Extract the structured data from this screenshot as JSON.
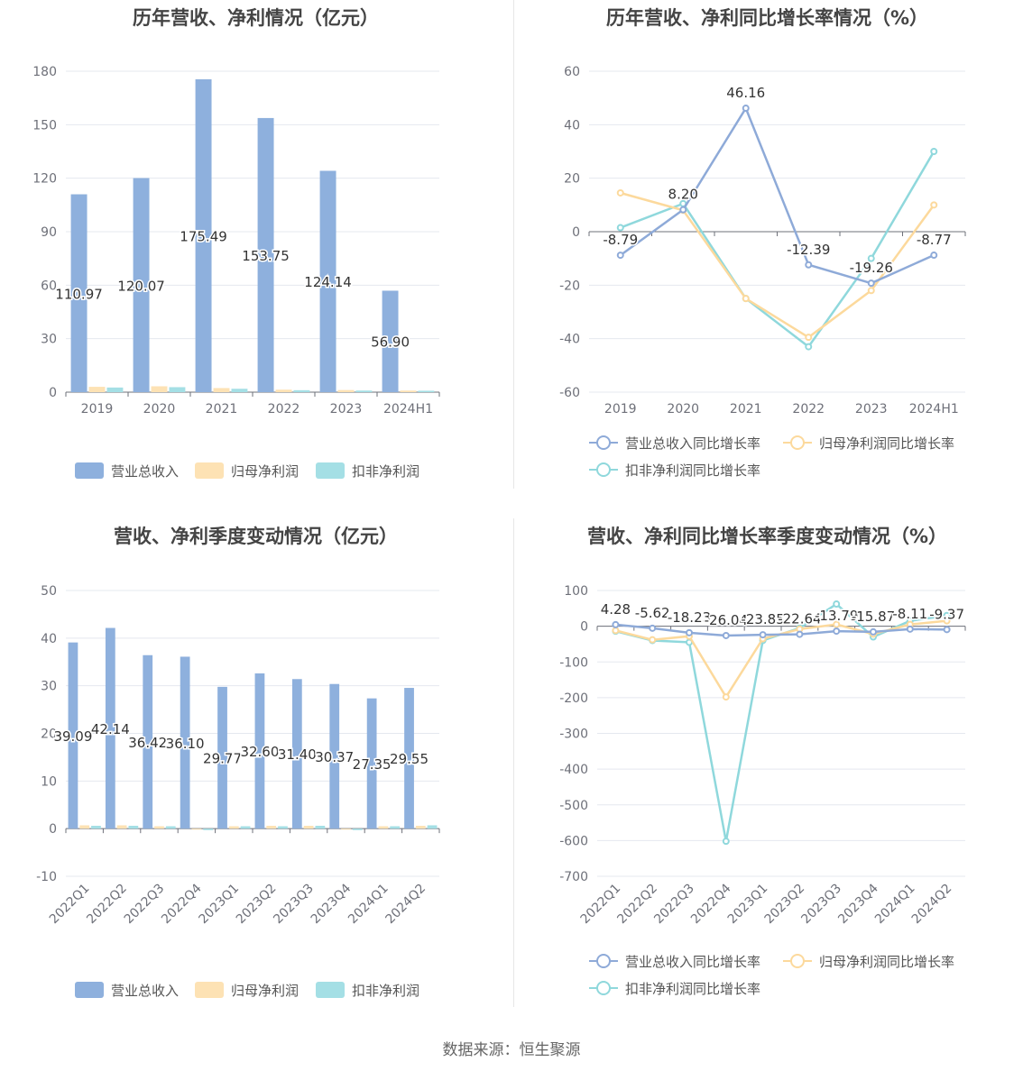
{
  "footer": "数据来源：恒生聚源",
  "colors": {
    "revenue": "#8eb0dd",
    "netprofit": "#fde2b4",
    "deducted": "#a4dfe5",
    "line_rev": "#8eaad8",
    "line_np": "#fcd99c",
    "line_ded": "#8fd8dc"
  },
  "chart_data": [
    {
      "type": "bar",
      "title": "历年营收、净利情况（亿元）",
      "categories": [
        "2019",
        "2020",
        "2021",
        "2022",
        "2023",
        "2024H1"
      ],
      "ylim": [
        0,
        180
      ],
      "yticks": [
        0,
        30,
        60,
        90,
        120,
        150,
        180
      ],
      "legend": [
        "营业总收入",
        "归母净利润",
        "扣非净利润"
      ],
      "legend_position": "bottom",
      "series": [
        {
          "name": "营业总收入",
          "values": [
            110.97,
            120.07,
            175.49,
            153.75,
            124.14,
            56.9
          ],
          "labels": [
            "110.97",
            "120.07",
            "175.49",
            "153.75",
            "124.14",
            "56.90"
          ]
        },
        {
          "name": "归母净利润",
          "values": [
            3.0,
            3.3,
            2.3,
            1.4,
            1.2,
            0.9
          ]
        },
        {
          "name": "扣非净利润",
          "values": [
            2.6,
            2.8,
            1.9,
            1.1,
            0.9,
            0.8
          ]
        }
      ]
    },
    {
      "type": "line",
      "title": "历年营收、净利同比增长率情况（%）",
      "categories": [
        "2019",
        "2020",
        "2021",
        "2022",
        "2023",
        "2024H1"
      ],
      "ylim": [
        -60,
        60
      ],
      "yticks": [
        -60,
        -40,
        -20,
        0,
        20,
        40,
        60
      ],
      "legend": [
        "营业总收入同比增长率",
        "归母净利润同比增长率",
        "扣非净利润同比增长率"
      ],
      "legend_position": "bottom",
      "series": [
        {
          "name": "营业总收入同比增长率",
          "values": [
            -8.79,
            8.2,
            46.16,
            -12.39,
            -19.26,
            -8.77
          ],
          "labels": [
            "-8.79",
            "8.20",
            "46.16",
            "-12.39",
            "-19.26",
            "-8.77"
          ]
        },
        {
          "name": "归母净利润同比增长率",
          "values": [
            14.5,
            8.0,
            -25.0,
            -39.5,
            -22.0,
            10.0
          ]
        },
        {
          "name": "扣非净利润同比增长率",
          "values": [
            1.5,
            10.5,
            -25.0,
            -43.0,
            -10.0,
            30.0
          ]
        }
      ]
    },
    {
      "type": "bar",
      "title": "营收、净利季度变动情况（亿元）",
      "categories": [
        "2022Q1",
        "2022Q2",
        "2022Q3",
        "2022Q4",
        "2023Q1",
        "2023Q2",
        "2023Q3",
        "2023Q4",
        "2024Q1",
        "2024Q2"
      ],
      "ylim": [
        -10,
        50
      ],
      "yticks": [
        -10,
        0,
        10,
        20,
        30,
        40,
        50
      ],
      "legend": [
        "营业总收入",
        "归母净利润",
        "扣非净利润"
      ],
      "legend_position": "bottom",
      "series": [
        {
          "name": "营业总收入",
          "values": [
            39.09,
            42.14,
            36.42,
            36.1,
            29.77,
            32.6,
            31.4,
            30.37,
            27.35,
            29.55
          ],
          "labels": [
            "39.09",
            "42.14",
            "36.42",
            "36.10",
            "29.77",
            "32.60",
            "31.40",
            "30.37",
            "27.35",
            "29.55"
          ]
        },
        {
          "name": "归母净利润",
          "values": [
            0.7,
            0.7,
            0.5,
            -0.2,
            0.5,
            0.6,
            0.6,
            -0.2,
            0.5,
            0.6
          ]
        },
        {
          "name": "扣非净利润",
          "values": [
            0.6,
            0.6,
            0.5,
            -0.3,
            0.5,
            0.5,
            0.6,
            -0.3,
            0.5,
            0.7
          ]
        }
      ]
    },
    {
      "type": "line",
      "title": "营收、净利同比增长率季度变动情况（%）",
      "categories": [
        "2022Q1",
        "2022Q2",
        "2022Q3",
        "2022Q4",
        "2023Q1",
        "2023Q2",
        "2023Q3",
        "2023Q4",
        "2024Q1",
        "2024Q2"
      ],
      "ylim": [
        -700,
        100
      ],
      "yticks": [
        -700,
        -600,
        -500,
        -400,
        -300,
        -200,
        -100,
        0,
        100
      ],
      "legend": [
        "营业总收入同比增长率",
        "归母净利润同比增长率",
        "扣非净利润同比增长率"
      ],
      "legend_position": "bottom",
      "series": [
        {
          "name": "营业总收入同比增长率",
          "values": [
            4.28,
            -5.62,
            -18.23,
            -26.04,
            -23.85,
            -22.64,
            -13.79,
            -15.87,
            -8.11,
            -9.37
          ],
          "labels": [
            "4.28",
            "-5.62",
            "-18.23",
            "-26.04",
            "-23.85",
            "-22.64",
            "-13.79",
            "-15.87",
            "-8.11",
            "-9.37"
          ]
        },
        {
          "name": "归母净利润同比增长率",
          "values": [
            -12.0,
            -38.0,
            -28.0,
            -198.0,
            -35.0,
            -8.0,
            5.0,
            -22.0,
            5.0,
            15.0
          ]
        },
        {
          "name": "扣非净利润同比增长率",
          "values": [
            -14.0,
            -40.0,
            -45.0,
            -602.0,
            -40.0,
            -5.0,
            62.0,
            -30.0,
            15.0,
            30.0
          ]
        }
      ]
    }
  ]
}
